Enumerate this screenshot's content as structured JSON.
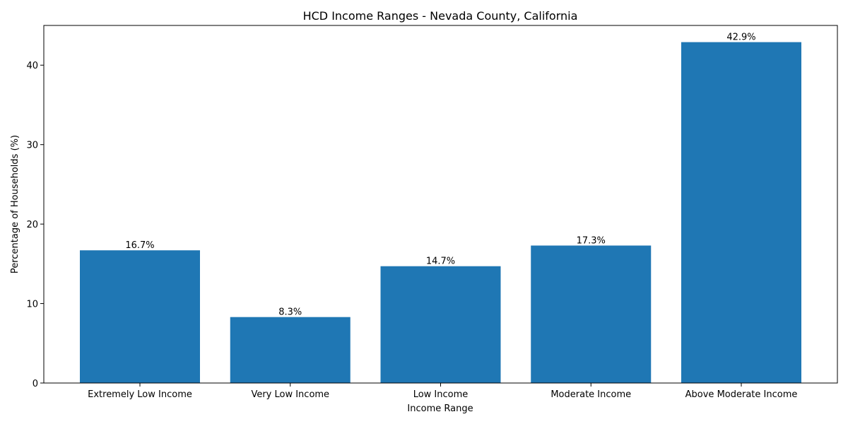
{
  "chart_data": {
    "type": "bar",
    "title": "HCD Income Ranges - Nevada County, California",
    "xlabel": "Income Range",
    "ylabel": "Percentage of Households (%)",
    "categories": [
      "Extremely Low Income",
      "Very Low Income",
      "Low Income",
      "Moderate Income",
      "Above Moderate Income"
    ],
    "values": [
      16.7,
      8.3,
      14.7,
      17.3,
      42.9
    ],
    "data_labels": [
      "16.7%",
      "8.3%",
      "14.7%",
      "17.3%",
      "42.9%"
    ],
    "ylim": [
      0,
      45
    ],
    "yticks": [
      0,
      10,
      20,
      30,
      40
    ],
    "grid": false,
    "bar_color": "#1f77b4"
  }
}
